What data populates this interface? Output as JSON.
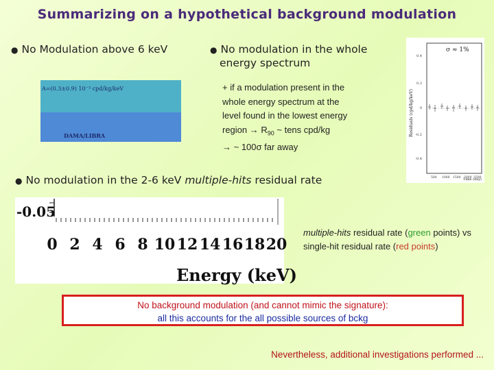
{
  "title": "Summarizing on  a hypothetical background modulation",
  "bullets": {
    "no_mod_above_6": "No Modulation above 6 keV",
    "no_mod_whole_1": "No modulation in the whole",
    "no_mod_whole_2": "energy spectrum",
    "no_mod_multihits_pre": "No modulation in the 2-6 keV ",
    "no_mod_multihits_em": "multiple-hits",
    "no_mod_multihits_post": " residual rate"
  },
  "note": {
    "line1": "+ if a modulation present in the",
    "line2": "whole energy spectrum at the",
    "line3": "level found in the lowest energy",
    "line4_pre": "region → R",
    "line4_sub": "90",
    "line4_post": " ~ tens cpd/kg",
    "line5": "→ ~ 100σ far away"
  },
  "modulation_plot": {
    "fit_text": "A=(0.3±0.9) 10⁻³ cpd/kg/keV",
    "logo_text": "DAMA/LIBRA"
  },
  "residuals_plot": {
    "ylabel": "Residuals (cpd/kg/keV)",
    "xlabel": "Time (day)",
    "annotation": "σ ≈ 1%",
    "yticks": [
      "0.4",
      "0.2",
      "0",
      "-0.2",
      "-0.4"
    ],
    "xticks": [
      "500",
      "1000",
      "1500",
      "2000",
      "2500"
    ]
  },
  "multihits_plot": {
    "ytick": "-0.05",
    "xticks": [
      "0",
      "2",
      "4",
      "6",
      "8",
      "10",
      "12",
      "14",
      "16",
      "18",
      "20"
    ],
    "xlabel": "Energy (keV)"
  },
  "multihits_caption": {
    "em": "multiple-hits",
    "part1": " residual rate (",
    "green": "green",
    "part2": " points) vs single-hit residual rate (",
    "red": "red points",
    "part3": ")"
  },
  "box": {
    "line1": "No background modulation (and cannot mimic the signature):",
    "line2": "all this accounts for the all possible sources of bckg"
  },
  "footer": "Nevertheless, additional investigations performed ...",
  "colors": {
    "title": "#4a2a7a",
    "box_border": "#d81e1e",
    "box_line1": "#c0121a",
    "box_line2": "#1a2aa0",
    "footer": "#b4131a"
  }
}
